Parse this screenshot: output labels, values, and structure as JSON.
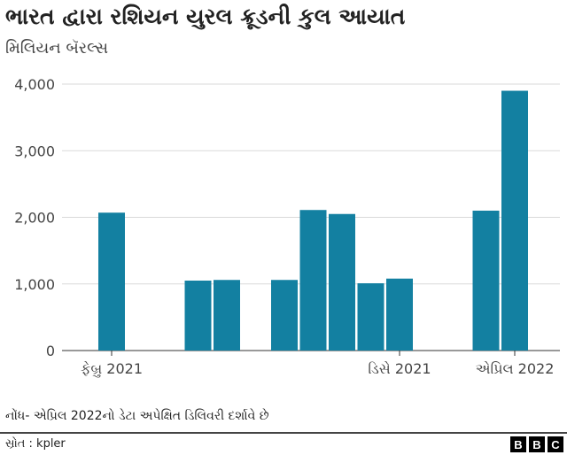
{
  "chart_data": {
    "type": "bar",
    "title": "ભારત દ્વારા રશિયન યુરલ ક્રૂડની કુલ આયાત",
    "subtitle": "મિલિયન બૅરલ્સ",
    "categories": [
      "Feb 2021",
      "Mar 2021",
      "Apr 2021",
      "May 2021",
      "Jun 2021",
      "Jul 2021",
      "Aug 2021",
      "Sep 2021",
      "Oct 2021",
      "Nov 2021",
      "Dec 2021",
      "Jan 2022",
      "Feb 2022",
      "Mar 2022",
      "Apr 2022"
    ],
    "values": [
      2070,
      null,
      null,
      1050,
      1060,
      null,
      1060,
      2110,
      2050,
      1010,
      1080,
      null,
      null,
      2100,
      3900
    ],
    "x_tick_labels": [
      {
        "category": "Feb 2021",
        "label": "ફેબ્રુ 2021"
      },
      {
        "category": "Dec 2021",
        "label": "ડિસે 2021"
      },
      {
        "category": "Apr 2022",
        "label": "એપ્રિલ 2022"
      }
    ],
    "y_ticks": [
      "0",
      "1,000",
      "2,000",
      "3,000",
      "4,000"
    ],
    "y_tick_values": [
      0,
      1000,
      2000,
      3000,
      4000
    ],
    "ylim": [
      0,
      4000
    ],
    "xlabel": "",
    "ylabel": "",
    "grid": true,
    "bar_color": "#1380A1"
  },
  "note": "નોંધ- એપ્રિલ 2022નો ડેટા અપેક્ષિત ડિલિવરી દર્શાવે છે",
  "source": "સ્રોત : kpler",
  "logo": [
    "B",
    "B",
    "C"
  ]
}
